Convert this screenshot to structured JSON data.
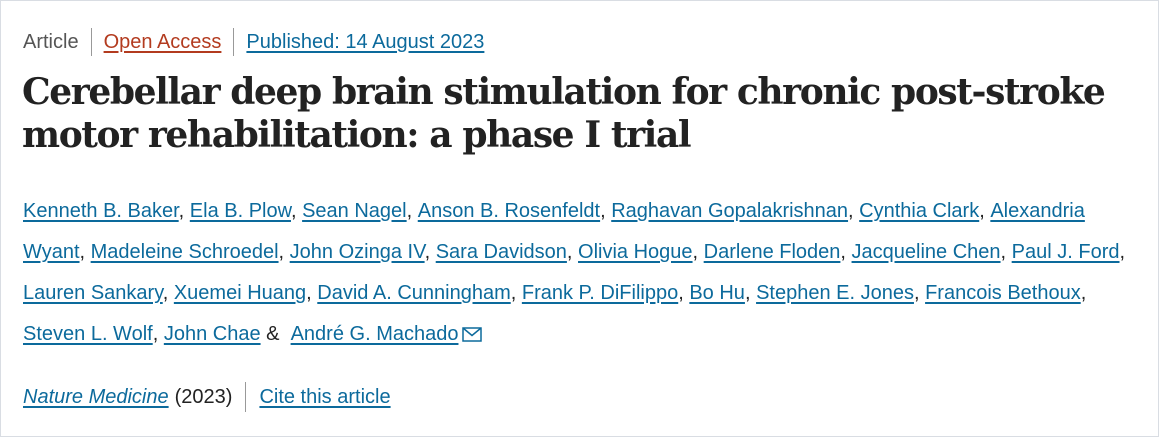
{
  "header": {
    "article_type": "Article",
    "access": "Open Access",
    "published": "Published: 14 August 2023"
  },
  "title": "Cerebellar deep brain stimulation for chronic post-stroke motor rehabilitation: a phase I trial",
  "authors": [
    "Kenneth B. Baker",
    "Ela B. Plow",
    "Sean Nagel",
    "Anson B. Rosenfeldt",
    "Raghavan Gopalakrishnan",
    "Cynthia Clark",
    "Alexandria Wyant",
    "Madeleine Schroedel",
    "John Ozinga IV",
    "Sara Davidson",
    "Olivia Hogue",
    "Darlene Floden",
    "Jacqueline Chen",
    "Paul J. Ford",
    "Lauren Sankary",
    "Xuemei Huang",
    "David A. Cunningham",
    "Frank P. DiFilippo",
    "Bo Hu",
    "Stephen E. Jones",
    "Francois Bethoux",
    "Steven L. Wolf",
    "John Chae",
    "André G. Machado"
  ],
  "author_separator": ", ",
  "last_author_joiner": " & ",
  "corresponding_icon": "mail-icon",
  "journal": {
    "name": "Nature Medicine",
    "year": "(2023)",
    "cite_label": "Cite this article"
  },
  "colors": {
    "link": "#0c6a9c",
    "open_access": "#b33b1f",
    "title": "#222222",
    "muted": "#555555"
  }
}
